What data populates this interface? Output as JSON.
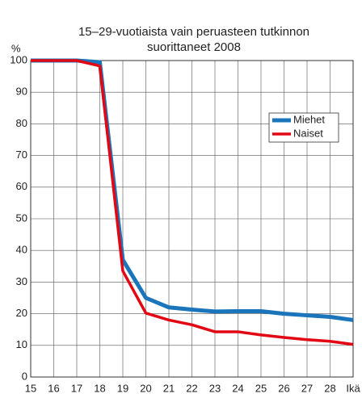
{
  "chart_data": {
    "type": "line",
    "title": [
      "15–29-vuotiaista vain peruasteen tutkinnon",
      "suorittaneet 2008"
    ],
    "ylabel": "%",
    "xlabel": "Ikä",
    "x": [
      15,
      16,
      17,
      18,
      19,
      20,
      21,
      22,
      23,
      24,
      25,
      26,
      27,
      28,
      29
    ],
    "series": [
      {
        "name": "Miehet",
        "color": "#1a75bb",
        "values": [
          100,
          100,
          100,
          99.5,
          37,
          25,
          22,
          21.3,
          20.7,
          20.8,
          20.8,
          20,
          19.5,
          19,
          18
        ]
      },
      {
        "name": "Naiset",
        "color": "#e30613",
        "values": [
          100,
          100,
          100,
          98.3,
          33.5,
          20.2,
          18,
          16.5,
          14.3,
          14.3,
          13.3,
          12.5,
          11.8,
          11.3,
          10.3
        ]
      }
    ],
    "xlim": [
      15,
      29
    ],
    "xticks": [
      15,
      16,
      17,
      18,
      19,
      20,
      21,
      22,
      23,
      24,
      25,
      26,
      27,
      28
    ],
    "ylim": [
      0,
      100
    ],
    "yticks": [
      0,
      10,
      20,
      30,
      40,
      50,
      60,
      70,
      80,
      90,
      100
    ],
    "grid": true,
    "legend": "upper right"
  }
}
